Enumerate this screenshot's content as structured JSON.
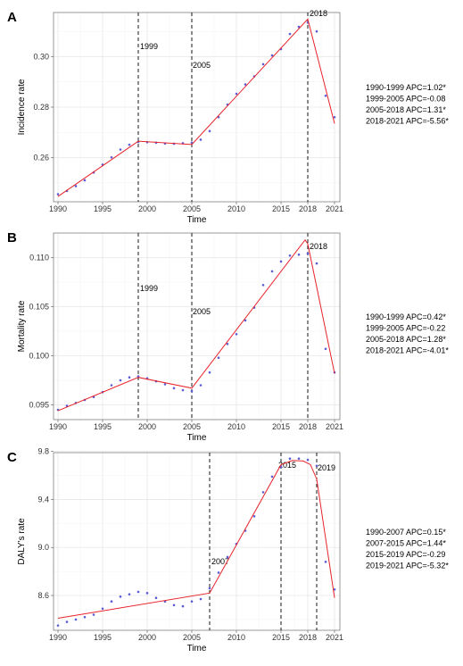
{
  "chart_data": [
    {
      "type": "line",
      "panel": "A",
      "ylabel": "Incidence rate",
      "xlabel": "Time",
      "xlim": [
        1989.5,
        2021.6
      ],
      "ylim": [
        0.2425,
        0.3175
      ],
      "x_ticks": [
        1990,
        1995,
        2000,
        2005,
        2010,
        2015,
        2018,
        2021
      ],
      "y_ticks": [
        0.26,
        0.28,
        0.3
      ],
      "y_tick_labels": [
        "0.26",
        "0.28",
        "0.30"
      ],
      "observed": {
        "x": [
          1990,
          1991,
          1992,
          1993,
          1994,
          1995,
          1996,
          1997,
          1998,
          1999,
          2000,
          2001,
          2002,
          2003,
          2004,
          2005,
          2006,
          2007,
          2008,
          2009,
          2010,
          2011,
          2012,
          2013,
          2014,
          2015,
          2016,
          2017,
          2018,
          2019,
          2020,
          2021
        ],
        "y": [
          0.2455,
          0.2468,
          0.2487,
          0.251,
          0.2541,
          0.2572,
          0.2601,
          0.2632,
          0.2651,
          0.2662,
          0.2661,
          0.2659,
          0.2656,
          0.2655,
          0.2657,
          0.2659,
          0.2671,
          0.2705,
          0.276,
          0.281,
          0.2853,
          0.289,
          0.2922,
          0.297,
          0.3005,
          0.303,
          0.309,
          0.3118,
          0.3135,
          0.31,
          0.2845,
          0.276
        ]
      },
      "fitted": {
        "x": [
          1990,
          1999,
          2005,
          2018,
          2021
        ],
        "y": [
          0.2446,
          0.2665,
          0.2652,
          0.3149,
          0.2735
        ]
      },
      "breakpoints": [
        1999,
        2005,
        2018
      ],
      "breakpoint_labels": [
        "1999",
        "2005",
        "2018"
      ],
      "legend": [
        "1990-1999 APC=1.02*",
        "1999-2005 APC=-0.08",
        "2005-2018 APC=1.31*",
        "2018-2021 APC=-5.56*"
      ]
    },
    {
      "type": "line",
      "panel": "B",
      "ylabel": "Mortality rate",
      "xlabel": "Time",
      "xlim": [
        1989.5,
        2021.6
      ],
      "ylim": [
        0.0935,
        0.1125
      ],
      "x_ticks": [
        1990,
        1995,
        2000,
        2005,
        2010,
        2015,
        2018,
        2021
      ],
      "y_ticks": [
        0.095,
        0.1,
        0.105,
        0.11
      ],
      "y_tick_labels": [
        "0.095",
        "0.100",
        "0.105",
        "0.110"
      ],
      "observed": {
        "x": [
          1990,
          1991,
          1992,
          1993,
          1994,
          1995,
          1996,
          1997,
          1998,
          1999,
          2000,
          2001,
          2002,
          2003,
          2004,
          2005,
          2006,
          2007,
          2008,
          2009,
          2010,
          2011,
          2012,
          2013,
          2014,
          2015,
          2016,
          2017,
          2018,
          2019,
          2020,
          2021
        ],
        "y": [
          0.0945,
          0.0949,
          0.0952,
          0.0955,
          0.0958,
          0.0963,
          0.097,
          0.0975,
          0.0978,
          0.0979,
          0.0977,
          0.0974,
          0.0971,
          0.0967,
          0.0965,
          0.0964,
          0.097,
          0.0983,
          0.0998,
          0.1012,
          0.1022,
          0.1036,
          0.1049,
          0.1072,
          0.1086,
          0.1096,
          0.1102,
          0.1103,
          0.1104,
          0.1094,
          0.1007,
          0.0983
        ]
      },
      "fitted": {
        "x": [
          1990,
          1999,
          2005,
          2017.7,
          2018,
          2021
        ],
        "y": [
          0.0944,
          0.0978,
          0.0967,
          0.1118,
          0.1114,
          0.0982
        ]
      },
      "breakpoints": [
        1999,
        2005,
        2018
      ],
      "breakpoint_labels": [
        "1999",
        "2005",
        "2018"
      ],
      "legend": [
        "1990-1999 APC=0.42*",
        "1999-2005 APC=-0.22",
        "2005-2018 APC=1.28*",
        "2018-2021 APC=-4.01*"
      ]
    },
    {
      "type": "line",
      "panel": "C",
      "ylabel": "DALY's rate",
      "xlabel": "Time",
      "xlim": [
        1989.5,
        2021.6
      ],
      "ylim": [
        8.31,
        9.79
      ],
      "x_ticks": [
        1990,
        1995,
        2000,
        2005,
        2010,
        2015,
        2018,
        2021
      ],
      "y_ticks": [
        8.6,
        9.0,
        9.4,
        9.8
      ],
      "y_tick_labels": [
        "8.6",
        "9.0",
        "9.4",
        "9.8"
      ],
      "observed": {
        "x": [
          1990,
          1991,
          1992,
          1993,
          1994,
          1995,
          1996,
          1997,
          1998,
          1999,
          2000,
          2001,
          2002,
          2003,
          2004,
          2005,
          2006,
          2007,
          2008,
          2009,
          2010,
          2011,
          2012,
          2013,
          2014,
          2015,
          2016,
          2017,
          2018,
          2019,
          2020,
          2021
        ],
        "y": [
          8.35,
          8.38,
          8.4,
          8.42,
          8.44,
          8.49,
          8.55,
          8.59,
          8.61,
          8.63,
          8.62,
          8.58,
          8.55,
          8.52,
          8.51,
          8.55,
          8.57,
          8.66,
          8.79,
          8.92,
          9.03,
          9.14,
          9.26,
          9.46,
          9.59,
          9.67,
          9.74,
          9.74,
          9.73,
          9.68,
          8.88,
          8.65
        ]
      },
      "fitted": {
        "x": [
          1990,
          2007,
          2015,
          2016.3,
          2017.5,
          2018.3,
          2019,
          2021
        ],
        "y": [
          8.41,
          8.62,
          9.69,
          9.725,
          9.72,
          9.69,
          9.57,
          8.58
        ]
      },
      "breakpoints": [
        2007,
        2015,
        2019
      ],
      "breakpoint_labels": [
        "2007",
        "2015",
        "2019"
      ],
      "legend": [
        "1990-2007 APC=0.15*",
        "2007-2015 APC=1.44*",
        "2015-2019 APC=-0.29",
        "2019-2021 APC=-5.32*"
      ]
    }
  ],
  "colors": {
    "observed_points": "#5b5bd6",
    "fitted_line": "#e8232a",
    "grid": "#e6e6e6"
  }
}
